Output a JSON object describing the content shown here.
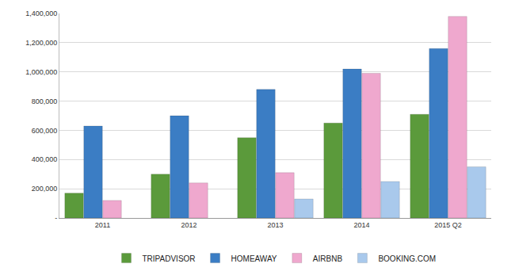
{
  "chart_data": {
    "type": "bar",
    "categories": [
      "2011",
      "2012",
      "2013",
      "2014",
      "2015 Q2"
    ],
    "series": [
      {
        "name": "TRIPADVISOR",
        "color": "#5b9a3b",
        "values": [
          170000,
          300000,
          550000,
          650000,
          710000
        ]
      },
      {
        "name": "HOMEAWAY",
        "color": "#3b7dc4",
        "values": [
          630000,
          700000,
          880000,
          1020000,
          1160000
        ]
      },
      {
        "name": "AIRBNB",
        "color": "#efa8ce",
        "values": [
          120000,
          240000,
          310000,
          990000,
          1380000
        ]
      },
      {
        "name": "BOOKING.COM",
        "color": "#a9c9ec",
        "values": [
          null,
          null,
          130000,
          250000,
          350000
        ]
      }
    ],
    "ylim": [
      0,
      1400000
    ],
    "yticks": [
      {
        "value": 0,
        "label": "-"
      },
      {
        "value": 200000,
        "label": "200,000"
      },
      {
        "value": 400000,
        "label": "400,000"
      },
      {
        "value": 600000,
        "label": "600,000"
      },
      {
        "value": 800000,
        "label": "800,000"
      },
      {
        "value": 1000000,
        "label": "1,000,000"
      },
      {
        "value": 1200000,
        "label": "1,200,000"
      },
      {
        "value": 1400000,
        "label": "1,400,000"
      }
    ],
    "grid": true,
    "legend": "bottom"
  }
}
